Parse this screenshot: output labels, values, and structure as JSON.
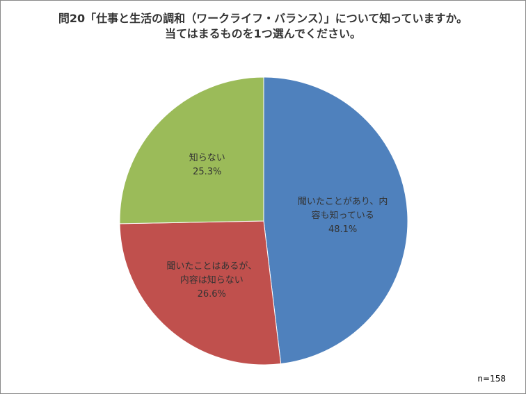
{
  "chart_data": {
    "type": "pie",
    "title": [
      "問20「仕事と生活の調和（ワークライフ・バランス）」について知っていますか。",
      "当てはまるものを1つ選んでください。"
    ],
    "categories": [
      "聞いたことがあり、内容も知っている",
      "聞いたことはあるが、内容は知らない",
      "知らない"
    ],
    "values": [
      48.1,
      26.6,
      25.3
    ],
    "value_labels": [
      "48.1%",
      "26.6%",
      "25.3%"
    ],
    "colors": [
      "#4f81bd",
      "#c0504d",
      "#9bbb59"
    ],
    "annotation": "n=158"
  }
}
